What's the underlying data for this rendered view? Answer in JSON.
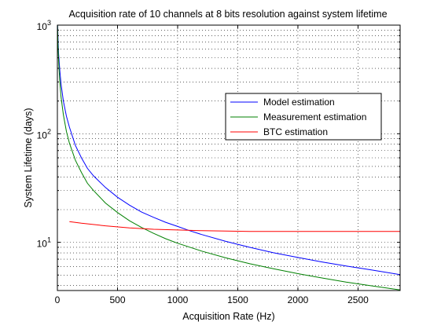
{
  "chart_data": {
    "type": "line",
    "title": "Acquisition rate of 10 channels at 8 bits resolution against system lifetime",
    "xlabel": "Acquisition Rate (Hz)",
    "ylabel": "System Lifetime (days)",
    "xlim": [
      0,
      2850
    ],
    "ylim": [
      3.6,
      1000
    ],
    "yscale": "log",
    "grid": true,
    "legend_position": "upper right",
    "xticks": [
      0,
      500,
      1000,
      1500,
      2000,
      2500
    ],
    "xtick_labels": [
      "0",
      "500",
      "1000",
      "1500",
      "2000",
      "2500"
    ],
    "ytick_labels": [
      {
        "value": 10,
        "base": "10",
        "exp": "1"
      },
      {
        "value": 100,
        "base": "10",
        "exp": "2"
      },
      {
        "value": 1000,
        "base": "10",
        "exp": "3"
      }
    ],
    "series": [
      {
        "name": "Model estimation",
        "color": "#0000ff",
        "x": [
          1,
          3,
          5,
          10,
          20,
          30,
          50,
          75,
          100,
          150,
          200,
          250,
          300,
          400,
          500,
          600,
          700,
          800,
          900,
          1000,
          1100,
          1200,
          1400,
          1600,
          1800,
          2000,
          2200,
          2400,
          2600,
          2850
        ],
        "y": [
          1000,
          900,
          750,
          550,
          380,
          290,
          200,
          145,
          115,
          78,
          60,
          48,
          41,
          32,
          26,
          22,
          19,
          17,
          15.3,
          14,
          12.8,
          11.8,
          10.2,
          9.0,
          8.0,
          7.25,
          6.6,
          6.05,
          5.6,
          5.05
        ]
      },
      {
        "name": "Measurement estimation",
        "color": "#008000",
        "x": [
          1,
          3,
          5,
          10,
          20,
          30,
          50,
          75,
          100,
          150,
          200,
          250,
          300,
          400,
          500,
          600,
          700,
          800,
          900,
          1000,
          1200,
          1400,
          1600,
          1800,
          2000,
          2200,
          2400,
          2600,
          2850
        ],
        "y": [
          1000,
          800,
          650,
          480,
          300,
          220,
          150,
          105,
          82,
          57,
          44,
          35,
          30,
          23,
          18.8,
          15.8,
          13.7,
          12.1,
          10.8,
          9.8,
          8.3,
          7.2,
          6.35,
          5.7,
          5.15,
          4.7,
          4.3,
          4.0,
          3.65
        ]
      },
      {
        "name": "BTC estimation",
        "color": "#ff0000",
        "x": [
          100,
          200,
          400,
          600,
          800,
          1000,
          1200,
          1400,
          1600,
          2000,
          2400,
          2850
        ],
        "y": [
          15.5,
          15.0,
          14.2,
          13.6,
          13.2,
          13.0,
          12.8,
          12.7,
          12.6,
          12.6,
          12.6,
          12.6
        ]
      }
    ]
  }
}
